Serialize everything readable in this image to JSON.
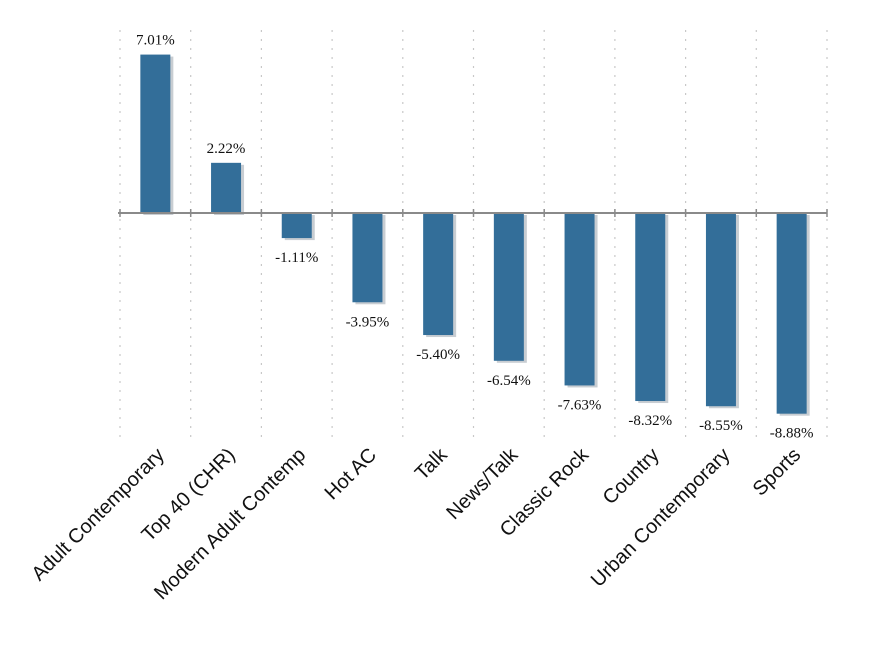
{
  "chart_data": {
    "type": "bar",
    "title": "",
    "xlabel": "",
    "ylabel": "",
    "categories": [
      "Adult Contemporary",
      "Top 40 (CHR)",
      "Modern Adult Contemp",
      "Hot AC",
      "Talk",
      "News/Talk",
      "Classic Rock",
      "Country",
      "Urban Contemporary",
      "Sports"
    ],
    "values": [
      7.01,
      2.22,
      -1.11,
      -3.95,
      -5.4,
      -6.54,
      -7.63,
      -8.32,
      -8.55,
      -8.88
    ],
    "value_labels": [
      "7.01%",
      "2.22%",
      "-1.11%",
      "-3.95%",
      "-5.40%",
      "-6.54%",
      "-7.63%",
      "-8.32%",
      "-8.55%",
      "-8.88%"
    ],
    "ylim": [
      -9.6,
      8.0
    ],
    "grid": "vertical dotted",
    "legend": "none",
    "bar_color": "#336e99"
  }
}
